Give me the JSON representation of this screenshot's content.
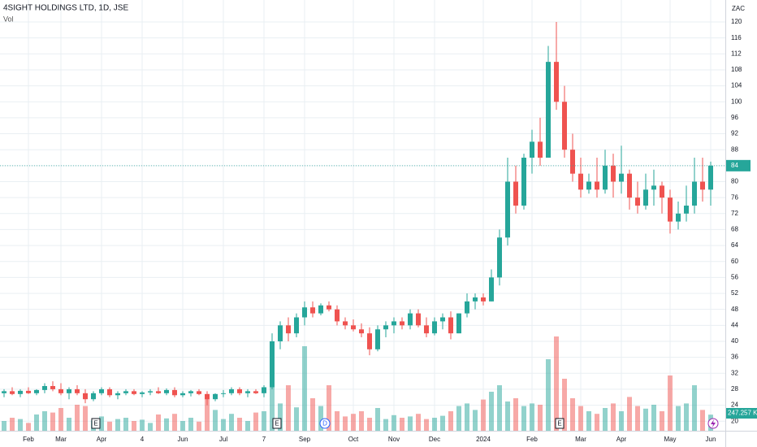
{
  "chart_data": {
    "type": "candlestick",
    "title": "4SIGHT HOLDINGS LTD, 1D, JSE",
    "volume_title": "Vol",
    "currency": "ZAC",
    "categories": [
      null,
      null,
      null,
      "Feb",
      null,
      null,
      null,
      "Mar",
      null,
      null,
      null,
      null,
      "Apr",
      null,
      null,
      null,
      null,
      "4",
      null,
      null,
      null,
      null,
      "Jun",
      null,
      null,
      null,
      null,
      "Jul",
      null,
      null,
      null,
      null,
      "7",
      null,
      null,
      null,
      null,
      "Sep",
      null,
      null,
      null,
      null,
      null,
      "Oct",
      null,
      null,
      null,
      null,
      "Nov",
      null,
      null,
      null,
      null,
      "Dec",
      null,
      null,
      null,
      null,
      null,
      "2024",
      null,
      null,
      null,
      null,
      null,
      "Feb",
      null,
      null,
      null,
      null,
      null,
      "Mar",
      null,
      null,
      null,
      null,
      "Apr",
      null,
      null,
      null,
      null,
      null,
      "May",
      null,
      null,
      null,
      null,
      "Jun"
    ],
    "open": [
      27,
      27.5,
      26.8,
      27.6,
      27,
      27.8,
      28.8,
      28,
      27,
      28,
      27,
      25.5,
      27,
      28,
      26.5,
      27,
      27.5,
      26.8,
      27.2,
      27.5,
      27,
      27.8,
      26.5,
      27,
      27.5,
      26.8,
      25.5,
      26.8,
      27,
      28,
      27,
      27.5,
      27,
      28.5,
      40,
      44,
      42,
      46,
      48.5,
      47,
      49,
      48,
      45,
      44,
      43,
      42,
      38,
      43,
      44,
      45,
      44,
      47,
      44,
      42,
      45,
      46,
      42,
      47,
      50,
      51,
      50,
      56,
      66,
      80,
      74,
      86,
      90,
      86,
      110,
      100,
      88,
      82,
      78,
      80,
      78,
      84,
      80,
      82,
      76,
      74,
      78,
      79,
      76,
      70,
      72,
      74,
      80,
      78
    ],
    "high": [
      28,
      28.5,
      28,
      28.5,
      28,
      29.5,
      30,
      29.5,
      28.5,
      29,
      28,
      27.5,
      28.5,
      28.5,
      27.5,
      28,
      28,
      27.5,
      28,
      28.5,
      28.2,
      28.5,
      27.5,
      27.8,
      28,
      27.5,
      27,
      27.8,
      28.5,
      28.5,
      28,
      28,
      29,
      42,
      45,
      46,
      47,
      50,
      50,
      49.5,
      50,
      49,
      46,
      45.5,
      44.5,
      43.5,
      44,
      45,
      46,
      46,
      48,
      48,
      46,
      46,
      47,
      47.5,
      47,
      52,
      52,
      52,
      58,
      68,
      86,
      84,
      87,
      93,
      96,
      114,
      120,
      104,
      92,
      86,
      82,
      86,
      88,
      87,
      89,
      83,
      80,
      82,
      83,
      80,
      78,
      75,
      79,
      86,
      86,
      85
    ],
    "low": [
      26,
      26.5,
      26,
      26.8,
      26.5,
      27,
      27.5,
      26.5,
      25.5,
      26.5,
      24.5,
      25,
      26.5,
      26,
      25.5,
      26.5,
      26.5,
      26,
      26.5,
      26.8,
      26.5,
      26,
      26,
      26.2,
      26.5,
      24,
      25,
      26,
      26.5,
      26.5,
      26,
      26.8,
      26,
      28,
      38,
      40,
      41,
      44,
      46,
      46.5,
      47.5,
      44,
      43,
      42.5,
      41,
      36.5,
      37.5,
      41,
      42,
      43,
      43,
      43.5,
      41,
      41.5,
      43,
      40.5,
      42,
      46,
      48,
      49,
      50,
      54,
      64,
      72,
      73,
      82,
      84,
      86,
      98,
      86,
      80,
      76,
      77,
      76,
      77,
      76,
      77,
      73,
      72,
      73,
      74,
      72,
      67,
      68,
      70,
      72,
      75,
      74
    ],
    "close": [
      27.5,
      26.8,
      27.6,
      27,
      27.8,
      28.8,
      28,
      27,
      28,
      27,
      25.5,
      27,
      28,
      26.5,
      27,
      27.5,
      26.8,
      27.2,
      27.5,
      27,
      27.8,
      26.5,
      27,
      27.5,
      26.8,
      25.5,
      26.8,
      27,
      28,
      27,
      27.5,
      27,
      28.5,
      40,
      44,
      42,
      46,
      48.5,
      47,
      49,
      48,
      45,
      44,
      43,
      42,
      38,
      43,
      44,
      45,
      44,
      47,
      44,
      42,
      45,
      46,
      42,
      47,
      50,
      51,
      50,
      56,
      66,
      80,
      74,
      86,
      90,
      86,
      110,
      100,
      88,
      82,
      78,
      80,
      78,
      84,
      80,
      82,
      76,
      74,
      78,
      79,
      76,
      70,
      72,
      74,
      80,
      78,
      84
    ],
    "volume": [
      150,
      200,
      180,
      120,
      250,
      300,
      280,
      350,
      200,
      400,
      380,
      160,
      220,
      140,
      180,
      200,
      150,
      170,
      120,
      250,
      190,
      260,
      150,
      200,
      140,
      500,
      320,
      180,
      260,
      200,
      150,
      280,
      300,
      900,
      420,
      700,
      360,
      1300,
      500,
      380,
      700,
      300,
      220,
      260,
      300,
      200,
      350,
      180,
      240,
      200,
      220,
      260,
      180,
      200,
      230,
      300,
      380,
      420,
      320,
      480,
      600,
      700,
      450,
      500,
      380,
      420,
      400,
      1100,
      1450,
      800,
      500,
      380,
      300,
      260,
      350,
      420,
      300,
      520,
      380,
      340,
      400,
      300,
      850,
      380,
      420,
      700,
      320,
      247.257
    ],
    "last_volume_label": "247.257 K",
    "last_price": 84,
    "up_color": "#26a69a",
    "down_color": "#ef5350",
    "ylim": [
      17.6,
      125.5
    ],
    "yticks": [
      20,
      24,
      28,
      32,
      36,
      40,
      44,
      48,
      52,
      56,
      60,
      64,
      68,
      72,
      76,
      80,
      84,
      88,
      92,
      96,
      100,
      104,
      108,
      112,
      116,
      120
    ],
    "y2lim": [
      0,
      2000
    ],
    "grid": true,
    "events": [
      "E",
      "E",
      "D",
      "E"
    ]
  }
}
